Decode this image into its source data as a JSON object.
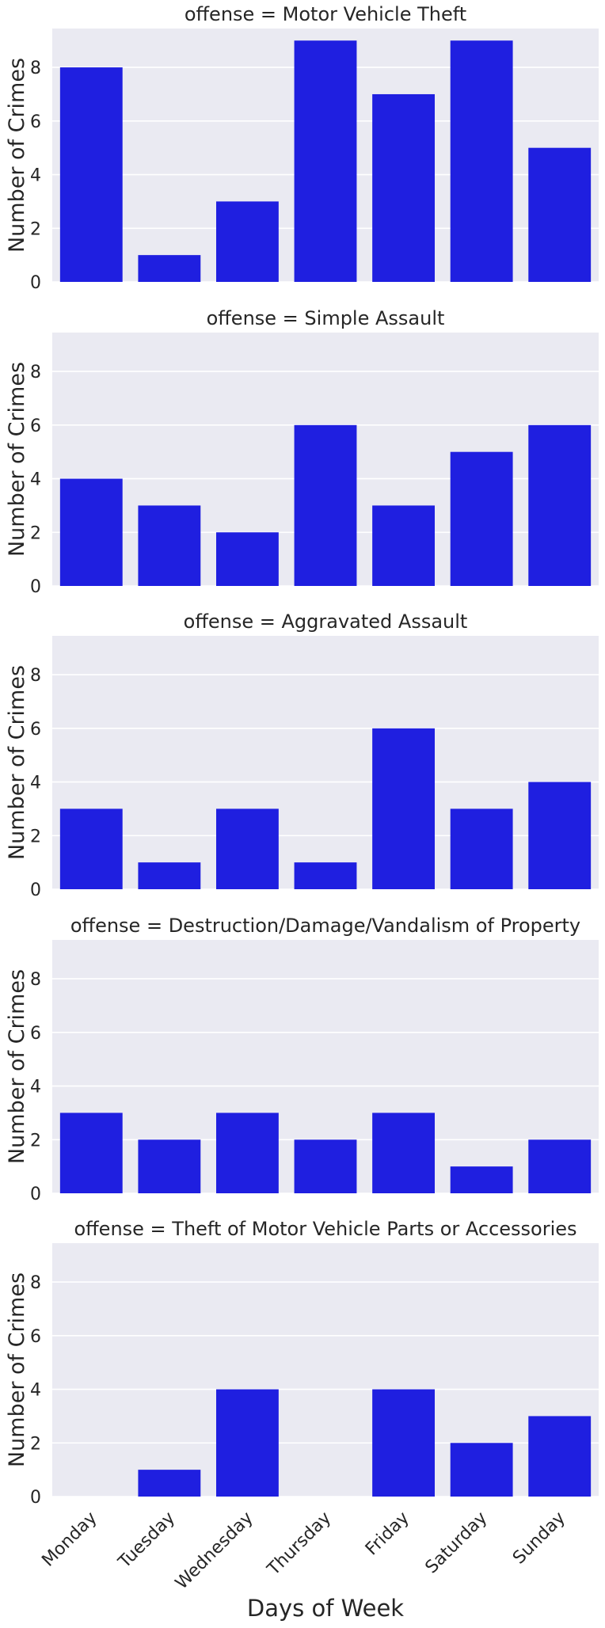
{
  "xlabel": "Days of Week",
  "ylabel": "Number of Crimes",
  "colors": {
    "bar": "#1f1fe0",
    "panel_bg": "#eaeaf2",
    "grid": "#ffffff"
  },
  "chart_data": [
    {
      "type": "bar",
      "title": "offense = Motor Vehicle Theft",
      "categories": [
        "Monday",
        "Tuesday",
        "Wednesday",
        "Thursday",
        "Friday",
        "Saturday",
        "Sunday"
      ],
      "values": [
        8,
        1,
        3,
        9,
        7,
        9,
        5
      ],
      "ylabel": "Number of Crimes",
      "ylim": [
        0,
        9.45
      ],
      "yticks": [
        0,
        2,
        4,
        6,
        8
      ],
      "grid": true
    },
    {
      "type": "bar",
      "title": "offense = Simple Assault",
      "categories": [
        "Monday",
        "Tuesday",
        "Wednesday",
        "Thursday",
        "Friday",
        "Saturday",
        "Sunday"
      ],
      "values": [
        4,
        3,
        2,
        6,
        3,
        5,
        6
      ],
      "ylabel": "Number of Crimes",
      "ylim": [
        0,
        9.45
      ],
      "yticks": [
        0,
        2,
        4,
        6,
        8
      ],
      "grid": true
    },
    {
      "type": "bar",
      "title": "offense = Aggravated Assault",
      "categories": [
        "Monday",
        "Tuesday",
        "Wednesday",
        "Thursday",
        "Friday",
        "Saturday",
        "Sunday"
      ],
      "values": [
        3,
        1,
        3,
        1,
        6,
        3,
        4
      ],
      "ylabel": "Number of Crimes",
      "ylim": [
        0,
        9.45
      ],
      "yticks": [
        0,
        2,
        4,
        6,
        8
      ],
      "grid": true
    },
    {
      "type": "bar",
      "title": "offense = Destruction/Damage/Vandalism of Property",
      "categories": [
        "Monday",
        "Tuesday",
        "Wednesday",
        "Thursday",
        "Friday",
        "Saturday",
        "Sunday"
      ],
      "values": [
        3,
        2,
        3,
        2,
        3,
        1,
        2
      ],
      "ylabel": "Number of Crimes",
      "ylim": [
        0,
        9.45
      ],
      "yticks": [
        0,
        2,
        4,
        6,
        8
      ],
      "grid": true
    },
    {
      "type": "bar",
      "title": "offense = Theft of Motor Vehicle Parts or Accessories",
      "categories": [
        "Monday",
        "Tuesday",
        "Wednesday",
        "Thursday",
        "Friday",
        "Saturday",
        "Sunday"
      ],
      "values": [
        0,
        1,
        4,
        0,
        4,
        2,
        3
      ],
      "xlabel": "Days of Week",
      "ylabel": "Number of Crimes",
      "ylim": [
        0,
        9.45
      ],
      "yticks": [
        0,
        2,
        4,
        6,
        8
      ],
      "grid": true
    }
  ]
}
